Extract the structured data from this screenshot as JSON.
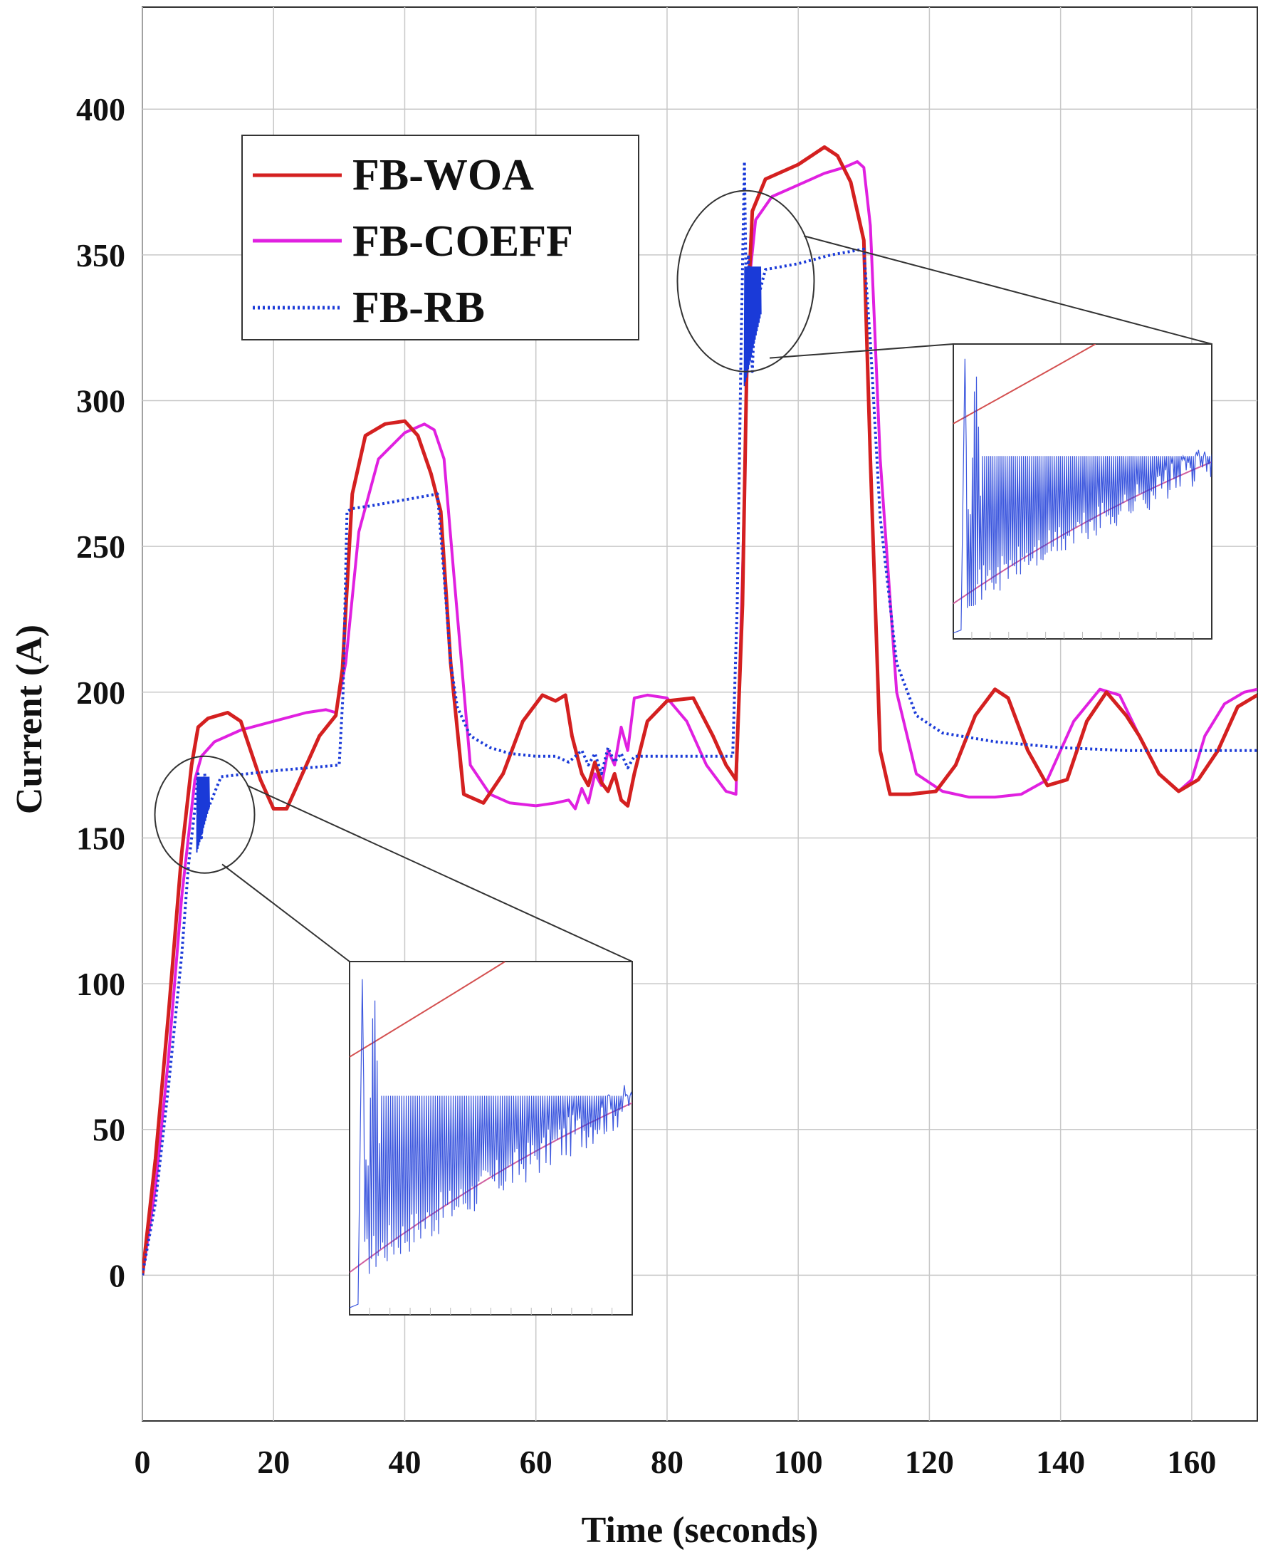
{
  "chart_data": {
    "type": "line",
    "title": "",
    "xlabel": "Time (seconds)",
    "ylabel": "Current (A)",
    "xlim": [
      0,
      170
    ],
    "ylim": [
      -50,
      435
    ],
    "xticks": [
      0,
      20,
      40,
      60,
      80,
      100,
      120,
      140,
      160
    ],
    "yticks": [
      0,
      50,
      100,
      150,
      200,
      250,
      300,
      350,
      400
    ],
    "grid": true,
    "legend_position": "top-left",
    "series": [
      {
        "name": "FB-WOA",
        "color": "#d42020",
        "style": "solid",
        "x": [
          0,
          2,
          4,
          6,
          7.5,
          8.5,
          10,
          13,
          15,
          18,
          20,
          22,
          24,
          27,
          29.5,
          30.5,
          32,
          34,
          37,
          40,
          42,
          44,
          45.5,
          47,
          49,
          52,
          55,
          58,
          61,
          63,
          64.5,
          65.5,
          67,
          68,
          69,
          70,
          71,
          72,
          73,
          74,
          75,
          77,
          80,
          84,
          87,
          89,
          90.5,
          91.5,
          92.3,
          93,
          95,
          100,
          104,
          106,
          108,
          110,
          111,
          112.5,
          114,
          117,
          121,
          124,
          127,
          130,
          132,
          135,
          138,
          141,
          144,
          147,
          150,
          152,
          155,
          158,
          161,
          164,
          167,
          170
        ],
        "y": [
          0,
          40,
          90,
          145,
          175,
          188,
          191,
          193,
          190,
          170,
          160,
          160,
          170,
          185,
          192,
          208,
          268,
          288,
          292,
          293,
          288,
          275,
          262,
          210,
          165,
          162,
          172,
          190,
          199,
          197,
          199,
          185,
          172,
          168,
          176,
          169,
          166,
          172,
          163,
          161,
          172,
          190,
          197,
          198,
          185,
          175,
          170,
          230,
          330,
          365,
          376,
          381,
          387,
          384,
          375,
          355,
          280,
          180,
          165,
          165,
          166,
          175,
          192,
          201,
          198,
          180,
          168,
          170,
          190,
          200,
          192,
          185,
          172,
          166,
          170,
          180,
          195,
          199
        ]
      },
      {
        "name": "FB-COEFF",
        "color": "#e020e0",
        "style": "solid",
        "x": [
          0,
          2,
          4,
          6,
          8,
          9,
          11,
          15,
          20,
          25,
          28,
          29.5,
          31,
          33,
          36,
          40,
          43,
          44.5,
          46,
          47.5,
          50,
          53,
          56,
          60,
          63,
          65,
          66,
          67,
          68,
          69,
          70,
          71,
          72,
          73,
          74,
          75,
          77,
          80,
          83,
          86,
          89,
          90.5,
          91.5,
          92.5,
          93.5,
          96,
          100,
          104,
          107,
          109,
          110,
          111,
          112.5,
          115,
          118,
          122,
          126,
          130,
          134,
          138,
          142,
          146,
          149,
          152,
          155,
          158,
          160,
          162,
          165,
          168,
          170
        ],
        "y": [
          0,
          30,
          75,
          130,
          170,
          178,
          183,
          187,
          190,
          193,
          194,
          193,
          210,
          255,
          280,
          289,
          292,
          290,
          280,
          240,
          175,
          165,
          162,
          161,
          162,
          163,
          160,
          167,
          162,
          172,
          168,
          180,
          175,
          188,
          180,
          198,
          199,
          198,
          190,
          175,
          166,
          165,
          240,
          340,
          362,
          370,
          374,
          378,
          380,
          382,
          380,
          360,
          280,
          200,
          172,
          166,
          164,
          164,
          165,
          170,
          190,
          201,
          199,
          185,
          172,
          166,
          170,
          185,
          196,
          200,
          201
        ]
      },
      {
        "name": "FB-RB",
        "color": "#1a3ad8",
        "style": "dotted",
        "x": [
          0,
          2,
          4,
          6,
          7,
          8,
          8.5,
          9,
          9.5,
          10,
          12,
          16,
          20,
          25,
          30,
          30.6,
          31.2,
          32,
          35,
          40,
          45,
          46,
          47,
          48,
          50,
          53,
          56,
          60,
          63,
          65,
          67,
          68,
          69,
          70,
          71,
          72,
          73,
          74,
          75,
          80,
          85,
          90,
          90.7,
          91.3,
          91.8,
          92.1,
          92.4,
          93,
          93.6,
          94.2,
          95,
          100,
          105,
          110,
          111,
          112.5,
          115,
          118,
          122,
          130,
          140,
          150,
          160,
          170
        ],
        "y": [
          0,
          25,
          65,
          110,
          140,
          160,
          172,
          150,
          172,
          160,
          171,
          172,
          173,
          174,
          175,
          200,
          262,
          263,
          264,
          266,
          268,
          240,
          210,
          195,
          185,
          181,
          179,
          178,
          178,
          176,
          180,
          175,
          179,
          172,
          181,
          176,
          179,
          174,
          178,
          178,
          178,
          178,
          230,
          320,
          382,
          330,
          350,
          310,
          345,
          338,
          345,
          347,
          350,
          352,
          320,
          260,
          210,
          192,
          186,
          183,
          181,
          180,
          180,
          180
        ]
      }
    ],
    "insets": [
      {
        "zoom_of": "FB-RB",
        "zoom_center": [
          9,
          158
        ]
      },
      {
        "zoom_of": "FB-RB",
        "zoom_center": [
          92,
          341
        ]
      }
    ]
  }
}
